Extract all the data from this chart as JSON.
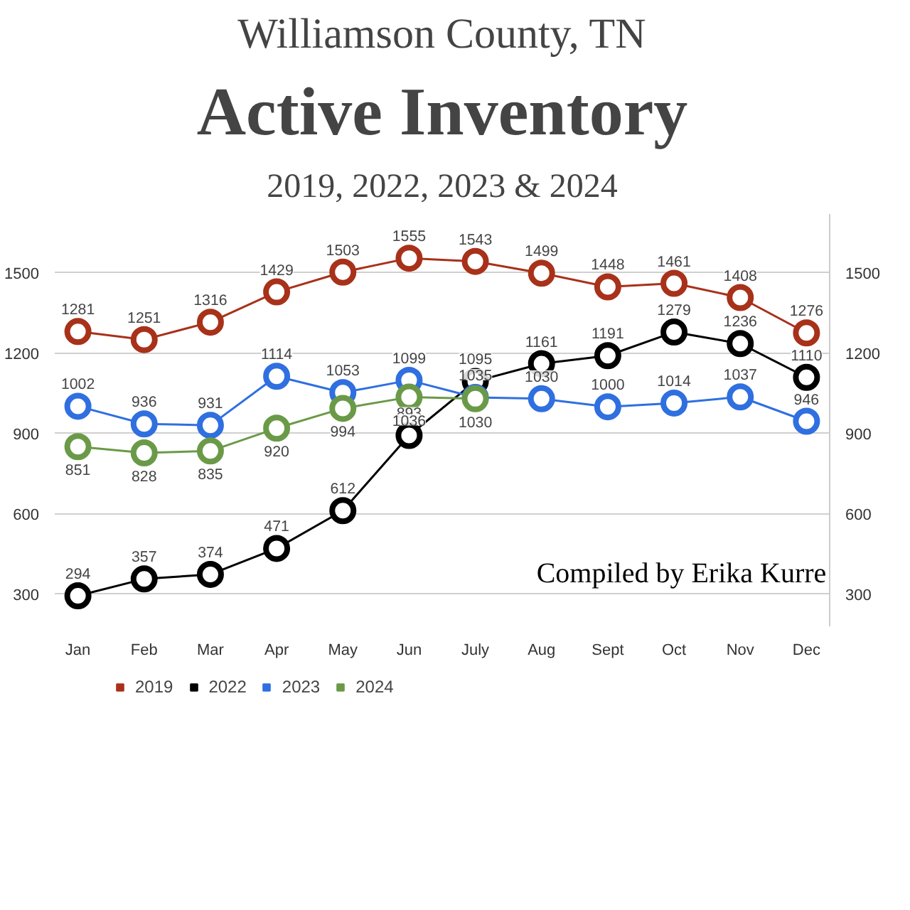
{
  "chart_data": {
    "type": "line",
    "title": "Active Inventory",
    "subtitle": "2019, 2022, 2023 & 2024",
    "annotations": [
      "Williamson County, TN",
      "Compiled by Erika Kurre"
    ],
    "categories": [
      "Jan",
      "Feb",
      "Mar",
      "Apr",
      "May",
      "Jun",
      "July",
      "Aug",
      "Sept",
      "Oct",
      "Nov",
      "Dec"
    ],
    "series": [
      {
        "name": "2019",
        "color": "#a8311a",
        "values": [
          1281,
          1251,
          1316,
          1429,
          1503,
          1555,
          1543,
          1499,
          1448,
          1461,
          1408,
          1276
        ]
      },
      {
        "name": "2022",
        "color": "#000000",
        "values": [
          294,
          357,
          374,
          471,
          612,
          893,
          1095,
          1161,
          1191,
          1279,
          1236,
          1110
        ]
      },
      {
        "name": "2023",
        "color": "#2f6fe0",
        "values": [
          1002,
          936,
          931,
          1114,
          1053,
          1099,
          1035,
          1030,
          1000,
          1014,
          1037,
          946
        ]
      },
      {
        "name": "2024",
        "color": "#6a9a48",
        "values": [
          851,
          828,
          835,
          920,
          994,
          1036,
          1030,
          null,
          null,
          null,
          null,
          null
        ]
      }
    ],
    "ylim": [
      180,
      1720
    ],
    "yticks": [
      300,
      600,
      900,
      1200,
      1500
    ],
    "y2lim": [
      180,
      1720
    ],
    "y2ticks": [
      300,
      600,
      900,
      1200,
      1500
    ],
    "grid": "y",
    "legend": "bottom left",
    "marker": "circle",
    "line_style": "solid",
    "data_labels": true
  }
}
